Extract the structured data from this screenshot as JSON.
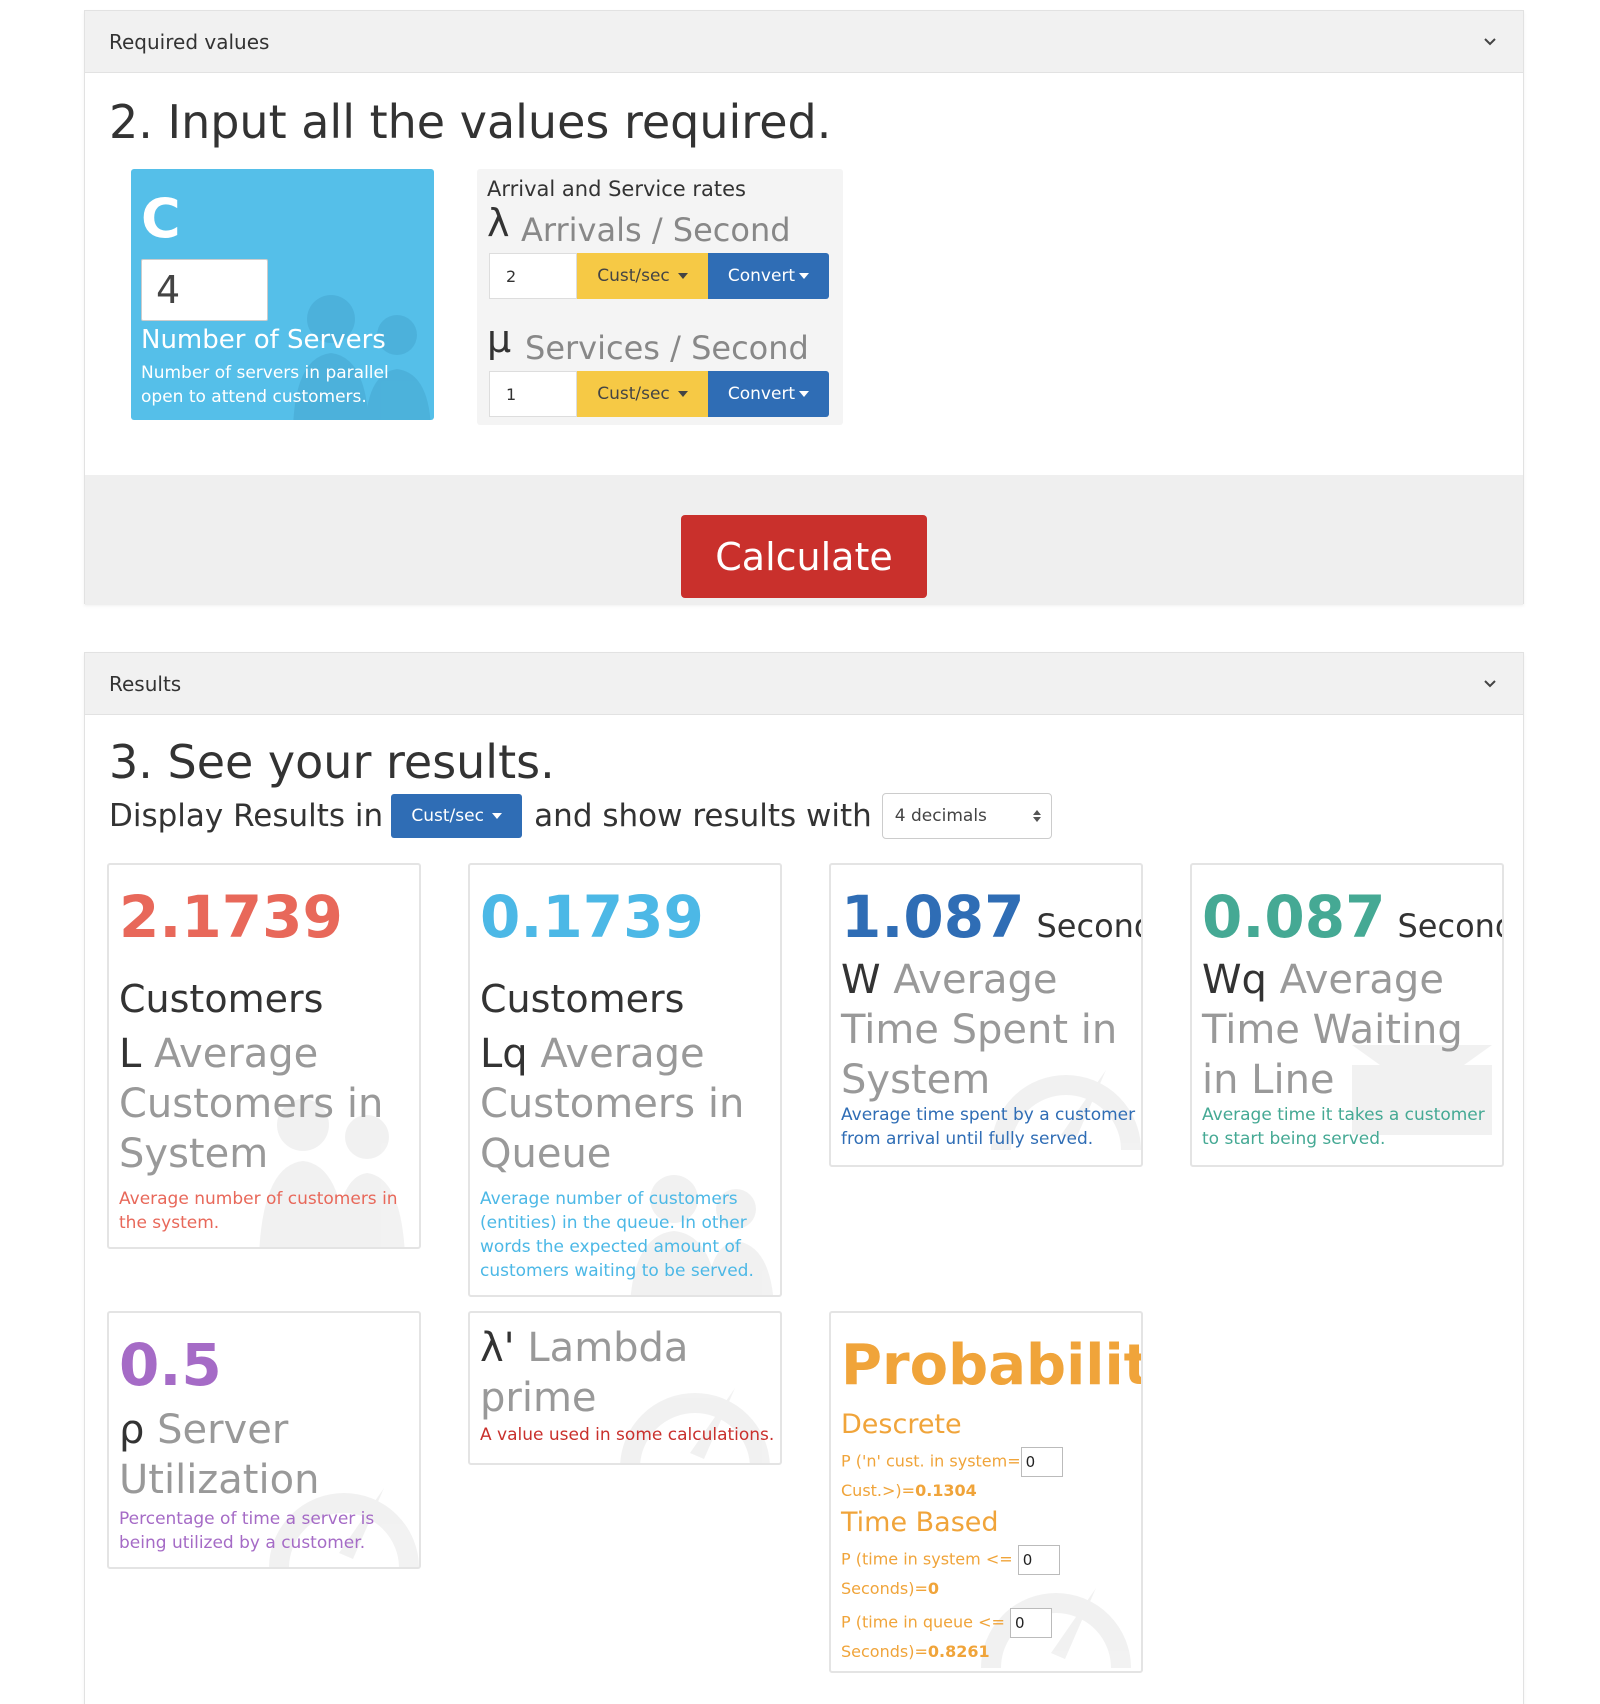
{
  "required_panel": {
    "title": "Required values",
    "heading": "2. Input all the values required.",
    "servers": {
      "symbol": "C",
      "value": "4",
      "label": "Number of Servers",
      "description": "Number of servers in parallel open to attend customers."
    },
    "rates": {
      "title": "Arrival and Service rates",
      "arrival": {
        "symbol": "λ",
        "label": "Arrivals / Second",
        "value": "2",
        "unit_button": "Cust/sec",
        "convert_button": "Convert"
      },
      "service": {
        "symbol": "μ",
        "label": "Services / Second",
        "value": "1",
        "unit_button": "Cust/sec",
        "convert_button": "Convert"
      }
    },
    "calculate_button": "Calculate"
  },
  "results_panel": {
    "title": "Results",
    "heading": "3. See your results.",
    "display_prefix": "Display Results in",
    "display_unit": "Cust/sec",
    "display_middle": "and show results with",
    "decimals_selected": "4 decimals",
    "cards": {
      "L": {
        "value": "2.1739",
        "unit": "Customers",
        "symbol": "L",
        "name": "Average Customers in System",
        "description": "Average number of customers in the system.",
        "color": "#e8685a"
      },
      "Lq": {
        "value": "0.1739",
        "unit": "Customers",
        "symbol": "Lq",
        "name": "Average Customers in Queue",
        "description": "Average number of customers (entities) in the queue. In other words the expected amount of customers waiting to be served.",
        "color": "#4cb8e6"
      },
      "W": {
        "value": "1.087",
        "unit": "Seconds",
        "symbol": "W",
        "name": "Average Time Spent in System",
        "description": "Average time spent by a customer from arrival until fully served.",
        "color": "#2f6db5"
      },
      "Wq": {
        "value": "0.087",
        "unit": "Seconds",
        "symbol": "Wq",
        "name": "Average Time Waiting in Line",
        "description": "Average time it takes a customer to start being served.",
        "color": "#45a994"
      },
      "rho": {
        "value": "0.5",
        "symbol": "ρ",
        "name": "Server Utilization",
        "description": "Percentage of time a server is being utilized by a customer.",
        "color": "#a56bc6"
      },
      "lambda_prime": {
        "symbol": "λ'",
        "name": "Lambda prime",
        "description": "A value used in some calculations.",
        "color": "#c9302c"
      },
      "probabilities": {
        "title": "Probabilities",
        "discrete_heading": "Descrete",
        "discrete_prefix": "P ('n' cust. in system=",
        "discrete_input": "0",
        "discrete_suffix": "Cust.>)=",
        "discrete_result": "0.1304",
        "time_heading": "Time Based",
        "time_system_prefix": "P (time in system <=",
        "time_system_input": "0",
        "time_system_suffix": "Seconds)=",
        "time_system_result": "0",
        "time_queue_prefix": "P (time in queue <=",
        "time_queue_input": "0",
        "time_queue_suffix": "Seconds)=",
        "time_queue_result": "0.8261",
        "color": "#f0a43a"
      }
    }
  }
}
